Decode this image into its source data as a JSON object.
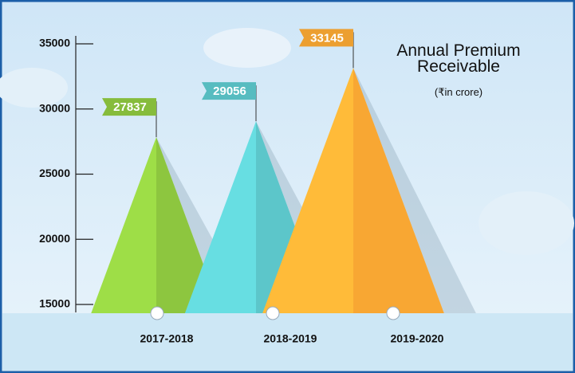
{
  "chart_data": {
    "type": "triangle",
    "title": "Annual Premium Receivable",
    "subtitle": "(₹in crore)",
    "categories": [
      "2017-2018",
      "2018-2019",
      "2019-2020"
    ],
    "values": [
      27837,
      29056,
      33145
    ],
    "colors": [
      "#8dc63f",
      "#5cc6ca",
      "#f8a733"
    ],
    "ylim": [
      15000,
      35000
    ],
    "yticks": [
      15000,
      20000,
      25000,
      30000,
      35000
    ]
  }
}
